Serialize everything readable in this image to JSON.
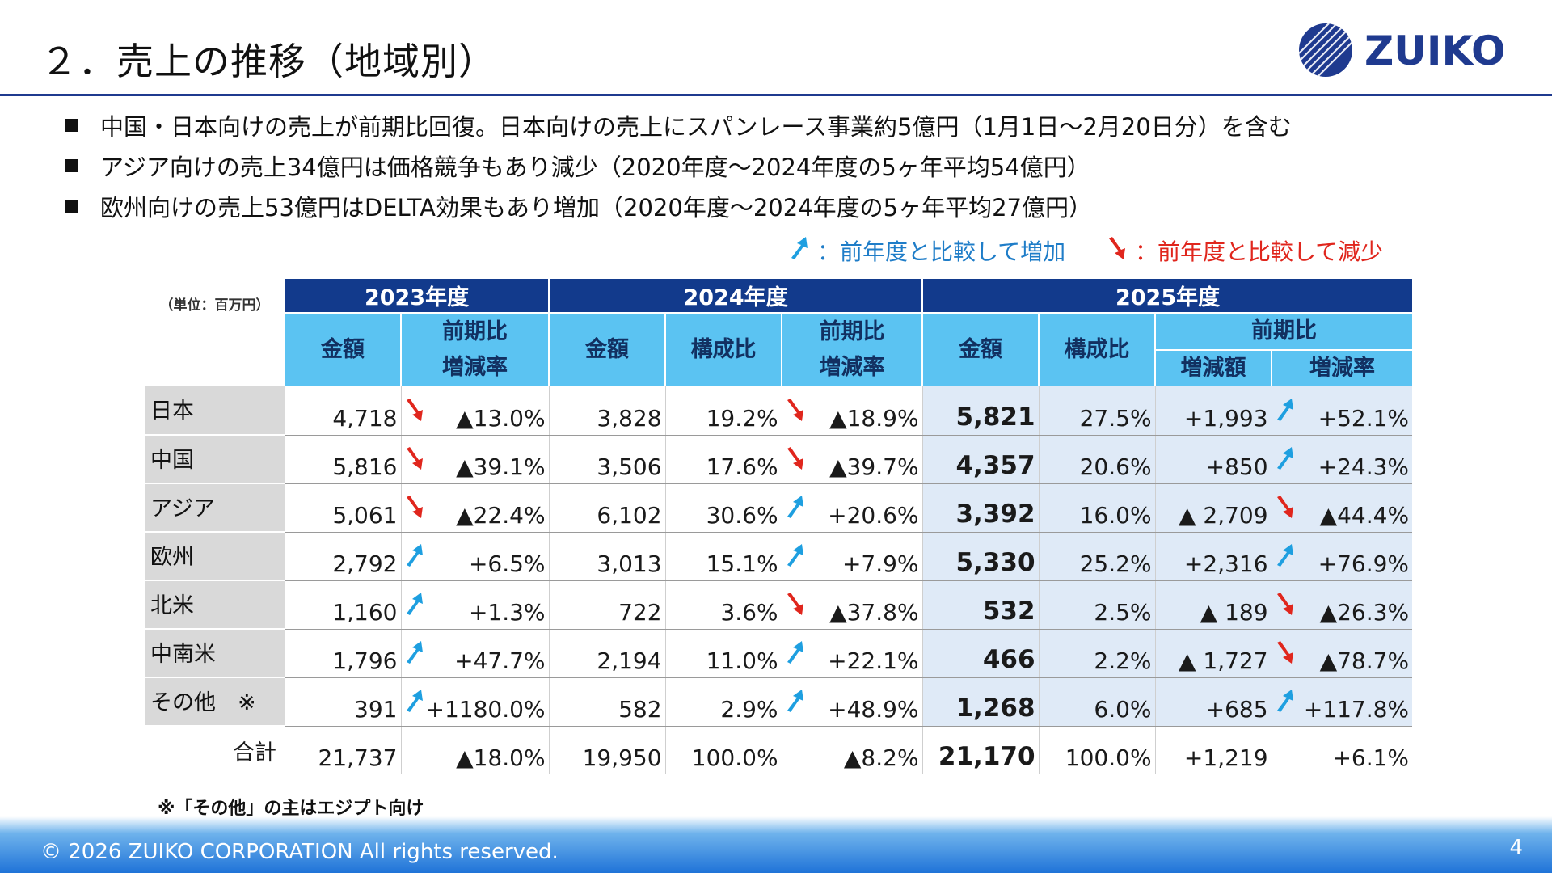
{
  "title": "２．売上の推移（地域別）",
  "logo_text": "ZUIKO",
  "bullets": [
    "中国・日本向けの売上が前期比回復。日本向けの売上にスパンレース事業約5億円（1月1日～2月20日分）を含む",
    "アジア向けの売上34億円は価格競争もあり減少（2020年度～2024年度の5ヶ年平均54億円）",
    "欧州向けの売上53億円はDELTA効果もあり増加（2020年度～2024年度の5ヶ年平均27億円）"
  ],
  "legend": {
    "up": "：前年度と比較して増加",
    "down": "：前年度と比較して減少",
    "up_color": "#1e9fe0",
    "down_color": "#e0261d"
  },
  "table": {
    "unit": "（単位：百万円）",
    "years": [
      "2023年度",
      "2024年度",
      "2025年度"
    ],
    "headers": {
      "amount": "金額",
      "yoy_rate_1": "前期比",
      "yoy_rate_2": "増減率",
      "share": "構成比",
      "yoy": "前期比",
      "diff": "増減額",
      "rate": "増減率"
    },
    "rows": [
      {
        "label": "日本",
        "a23": "4,718",
        "d23": "down",
        "r23": "▲13.0%",
        "a24": "3,828",
        "s24": "19.2%",
        "d24": "down",
        "r24": "▲18.9%",
        "a25": "5,821",
        "s25": "27.5%",
        "diff": "+1,993",
        "d25": "up",
        "r25": "+52.1%"
      },
      {
        "label": "中国",
        "a23": "5,816",
        "d23": "down",
        "r23": "▲39.1%",
        "a24": "3,506",
        "s24": "17.6%",
        "d24": "down",
        "r24": "▲39.7%",
        "a25": "4,357",
        "s25": "20.6%",
        "diff": "+850",
        "d25": "up",
        "r25": "+24.3%"
      },
      {
        "label": "アジア",
        "a23": "5,061",
        "d23": "down",
        "r23": "▲22.4%",
        "a24": "6,102",
        "s24": "30.6%",
        "d24": "up",
        "r24": "+20.6%",
        "a25": "3,392",
        "s25": "16.0%",
        "diff": "▲ 2,709",
        "d25": "down",
        "r25": "▲44.4%"
      },
      {
        "label": "欧州",
        "a23": "2,792",
        "d23": "up",
        "r23": "+6.5%",
        "a24": "3,013",
        "s24": "15.1%",
        "d24": "up",
        "r24": "+7.9%",
        "a25": "5,330",
        "s25": "25.2%",
        "diff": "+2,316",
        "d25": "up",
        "r25": "+76.9%"
      },
      {
        "label": "北米",
        "a23": "1,160",
        "d23": "up",
        "r23": "+1.3%",
        "a24": "722",
        "s24": "3.6%",
        "d24": "down",
        "r24": "▲37.8%",
        "a25": "532",
        "s25": "2.5%",
        "diff": "▲ 189",
        "d25": "down",
        "r25": "▲26.3%"
      },
      {
        "label": "中南米",
        "a23": "1,796",
        "d23": "up",
        "r23": "+47.7%",
        "a24": "2,194",
        "s24": "11.0%",
        "d24": "up",
        "r24": "+22.1%",
        "a25": "466",
        "s25": "2.2%",
        "diff": "▲ 1,727",
        "d25": "down",
        "r25": "▲78.7%"
      },
      {
        "label": "その他　※",
        "a23": "391",
        "d23": "up",
        "r23": "+1180.0%",
        "a24": "582",
        "s24": "2.9%",
        "d24": "up",
        "r24": "+48.9%",
        "a25": "1,268",
        "s25": "6.0%",
        "diff": "+685",
        "d25": "up",
        "r25": "+117.8%"
      }
    ],
    "total": {
      "label": "合計",
      "a23": "21,737",
      "r23": "▲18.0%",
      "a24": "19,950",
      "s24": "100.0%",
      "r24": "▲8.2%",
      "a25": "21,170",
      "s25": "100.0%",
      "diff": "+1,219",
      "r25": "+6.1%"
    }
  },
  "note": "※「その他」の主はエジプト向け",
  "footer": "© 2026 ZUIKO CORPORATION All rights reserved.",
  "page_number": "4"
}
